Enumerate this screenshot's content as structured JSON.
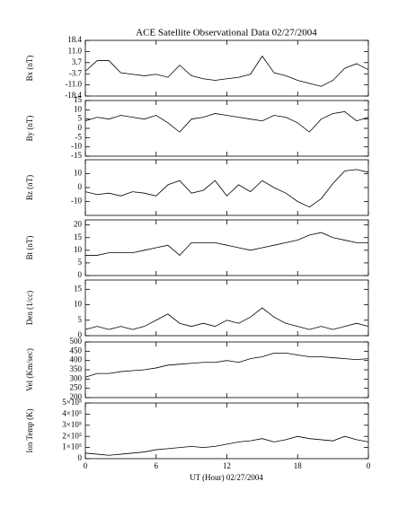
{
  "chart_data": [
    {
      "type": "line",
      "title": "ACE Satellite Observational Data   02/27/2004",
      "ylabel": "Bx (nT)",
      "color": "#000000",
      "x": [
        0,
        1,
        2,
        3,
        4,
        5,
        6,
        7,
        8,
        9,
        10,
        11,
        12,
        13,
        14,
        15,
        16,
        17,
        18,
        19,
        20,
        21,
        22,
        23,
        24
      ],
      "values": [
        -2,
        5,
        5,
        -3,
        -4,
        -5,
        -4,
        -6,
        2,
        -5,
        -7,
        -8,
        -7,
        -6,
        -4,
        8,
        -3,
        -5,
        -8,
        -10,
        -12,
        -8,
        0,
        3,
        -1
      ],
      "ylim": [
        -18.4,
        18.4
      ],
      "yticks": [
        18.4,
        {
          "value": 11,
          "label": "11.0"
        },
        3.7,
        -3.7,
        {
          "value": -11,
          "label": "-11.0"
        },
        -18.4
      ]
    },
    {
      "type": "line",
      "ylabel": "By (nT)",
      "color": "#000000",
      "x": [
        0,
        1,
        2,
        3,
        4,
        5,
        6,
        7,
        8,
        9,
        10,
        11,
        12,
        13,
        14,
        15,
        16,
        17,
        18,
        19,
        20,
        21,
        22,
        23,
        24
      ],
      "values": [
        4,
        6,
        5,
        7,
        6,
        5,
        7,
        3,
        -2,
        5,
        6,
        8,
        7,
        6,
        5,
        4,
        7,
        6,
        3,
        -2,
        5,
        8,
        9,
        4,
        6
      ],
      "ylim": [
        -15,
        15
      ],
      "yticks": [
        15,
        10,
        5,
        0,
        -5,
        -10,
        -15
      ]
    },
    {
      "type": "line",
      "ylabel": "Bz (nT)",
      "color": "#000000",
      "x": [
        0,
        1,
        2,
        3,
        4,
        5,
        6,
        7,
        8,
        9,
        10,
        11,
        12,
        13,
        14,
        15,
        16,
        17,
        18,
        19,
        20,
        21,
        22,
        23,
        24
      ],
      "values": [
        -3,
        -5,
        -4,
        -6,
        -3,
        -4,
        -6,
        2,
        5,
        -4,
        -2,
        5,
        -6,
        2,
        -3,
        5,
        0,
        -4,
        -10,
        -14,
        -8,
        3,
        12,
        13,
        11
      ],
      "ylim": [
        -20,
        20
      ],
      "yticks": [
        10,
        0,
        -10
      ]
    },
    {
      "type": "line",
      "ylabel": "Bt (nT)",
      "color": "#000000",
      "x": [
        0,
        1,
        2,
        3,
        4,
        5,
        6,
        7,
        8,
        9,
        10,
        11,
        12,
        13,
        14,
        15,
        16,
        17,
        18,
        19,
        20,
        21,
        22,
        23,
        24
      ],
      "values": [
        8,
        8,
        9,
        9,
        9,
        10,
        11,
        12,
        8,
        13,
        13,
        13,
        12,
        11,
        10,
        11,
        12,
        13,
        14,
        16,
        17,
        15,
        14,
        13,
        13
      ],
      "ylim": [
        0,
        22
      ],
      "yticks": [
        20,
        15,
        10,
        5,
        0
      ]
    },
    {
      "type": "line",
      "ylabel": "Den (1/cc)",
      "color": "#000000",
      "x": [
        0,
        1,
        2,
        3,
        4,
        5,
        6,
        7,
        8,
        9,
        10,
        11,
        12,
        13,
        14,
        15,
        16,
        17,
        18,
        19,
        20,
        21,
        22,
        23,
        24
      ],
      "values": [
        2,
        3,
        2,
        3,
        2,
        3,
        5,
        7,
        4,
        3,
        4,
        3,
        5,
        4,
        6,
        9,
        6,
        4,
        3,
        2,
        3,
        2,
        3,
        4,
        3
      ],
      "ylim": [
        0,
        18
      ],
      "yticks": [
        15,
        10,
        5,
        0
      ]
    },
    {
      "type": "line",
      "ylabel": "Vel (Km/sec)",
      "color": "#000000",
      "x": [
        0,
        1,
        2,
        3,
        4,
        5,
        6,
        7,
        8,
        9,
        10,
        11,
        12,
        13,
        14,
        15,
        16,
        17,
        18,
        19,
        20,
        21,
        22,
        23,
        24
      ],
      "values": [
        310,
        330,
        330,
        340,
        345,
        350,
        360,
        375,
        380,
        385,
        390,
        390,
        400,
        390,
        410,
        420,
        440,
        440,
        430,
        420,
        420,
        415,
        410,
        405,
        410
      ],
      "ylim": [
        200,
        500
      ],
      "yticks": [
        500,
        450,
        400,
        350,
        300,
        250,
        200
      ]
    },
    {
      "type": "line",
      "ylabel": "Ion Temp (K)",
      "xlabel": "UT (Hour)   02/27/2004",
      "color": "#000000",
      "x": [
        0,
        1,
        2,
        3,
        4,
        5,
        6,
        7,
        8,
        9,
        10,
        11,
        12,
        13,
        14,
        15,
        16,
        17,
        18,
        19,
        20,
        21,
        22,
        23,
        24
      ],
      "values": [
        50000,
        40000,
        30000,
        40000,
        50000,
        60000,
        80000,
        90000,
        100000,
        110000,
        100000,
        110000,
        130000,
        150000,
        160000,
        180000,
        150000,
        170000,
        200000,
        180000,
        170000,
        160000,
        200000,
        170000,
        150000
      ],
      "ylim": [
        0,
        500000
      ],
      "yticks": [
        {
          "value": 500000,
          "label": "5×10⁵"
        },
        {
          "value": 400000,
          "label": "4×10⁵"
        },
        {
          "value": 300000,
          "label": "3×10⁵"
        },
        {
          "value": 200000,
          "label": "2×10⁵"
        },
        {
          "value": 100000,
          "label": "1×10⁵"
        },
        0
      ],
      "xlim": [
        0,
        24
      ],
      "xticks": [
        0,
        6,
        12,
        18,
        {
          "value": 24,
          "label": "0"
        }
      ]
    }
  ]
}
